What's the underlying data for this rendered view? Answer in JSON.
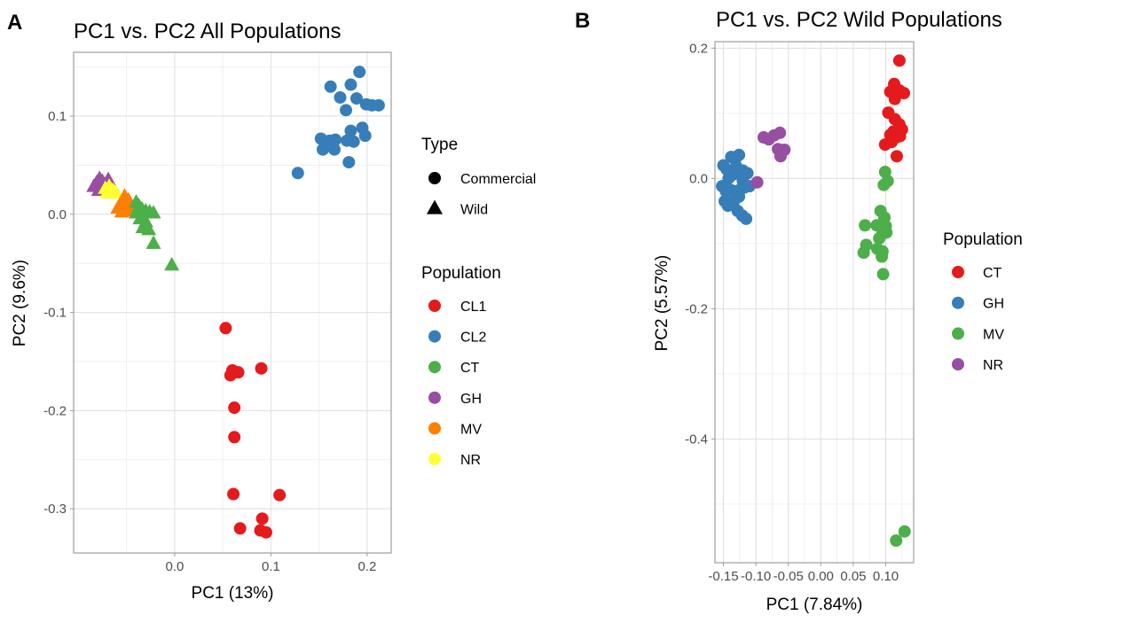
{
  "chart_data": [
    {
      "type": "scatter",
      "panel_label": "A",
      "title": "PC1 vs. PC2 All Populations",
      "xlabel": "PC1 (13%)",
      "ylabel": "PC2 (9.6%)",
      "xlim": [
        -0.105,
        0.225
      ],
      "ylim": [
        -0.345,
        0.165
      ],
      "x_ticks": [
        0.0,
        0.1,
        0.2
      ],
      "x_tick_labels": [
        "0.0",
        "0.1",
        "0.2"
      ],
      "y_ticks": [
        0.1,
        0.0,
        -0.1,
        -0.2,
        -0.3
      ],
      "y_tick_labels": [
        "0.1",
        "0.0",
        "-0.1",
        "-0.2",
        "-0.3"
      ],
      "grid": true,
      "legend_type": {
        "title": "Type",
        "entries": [
          {
            "label": "Commercial",
            "shape": "circle"
          },
          {
            "label": "Wild",
            "shape": "triangle"
          }
        ]
      },
      "legend_population": {
        "title": "Population",
        "entries": [
          {
            "label": "CL1",
            "color": "#E41A1C"
          },
          {
            "label": "CL2",
            "color": "#377EB8"
          },
          {
            "label": "CT",
            "color": "#4DAF4A"
          },
          {
            "label": "GH",
            "color": "#984EA3"
          },
          {
            "label": "MV",
            "color": "#FF7F00"
          },
          {
            "label": "NR",
            "color": "#FFFF33"
          }
        ]
      },
      "series": [
        {
          "name": "CL2",
          "shape": "circle",
          "color": "#377EB8",
          "points": [
            [
              0.192,
              0.145
            ],
            [
              0.162,
              0.13
            ],
            [
              0.183,
              0.132
            ],
            [
              0.172,
              0.119
            ],
            [
              0.189,
              0.118
            ],
            [
              0.178,
              0.106
            ],
            [
              0.199,
              0.112
            ],
            [
              0.205,
              0.111
            ],
            [
              0.212,
              0.111
            ],
            [
              0.195,
              0.088
            ],
            [
              0.198,
              0.08
            ],
            [
              0.183,
              0.085
            ],
            [
              0.152,
              0.077
            ],
            [
              0.161,
              0.075
            ],
            [
              0.167,
              0.076
            ],
            [
              0.179,
              0.075
            ],
            [
              0.186,
              0.074
            ],
            [
              0.154,
              0.066
            ],
            [
              0.166,
              0.066
            ],
            [
              0.181,
              0.053
            ],
            [
              0.128,
              0.042
            ]
          ]
        },
        {
          "name": "CL1",
          "shape": "circle",
          "color": "#E41A1C",
          "points": [
            [
              0.053,
              -0.116
            ],
            [
              0.06,
              -0.159
            ],
            [
              0.058,
              -0.164
            ],
            [
              0.066,
              -0.161
            ],
            [
              0.09,
              -0.157
            ],
            [
              0.062,
              -0.197
            ],
            [
              0.062,
              -0.227
            ],
            [
              0.061,
              -0.285
            ],
            [
              0.109,
              -0.286
            ],
            [
              0.091,
              -0.31
            ],
            [
              0.068,
              -0.32
            ],
            [
              0.089,
              -0.322
            ],
            [
              0.095,
              -0.324
            ]
          ]
        },
        {
          "name": "GH",
          "shape": "triangle",
          "color": "#984EA3",
          "points": [
            [
              -0.084,
              0.028
            ],
            [
              -0.081,
              0.032
            ],
            [
              -0.078,
              0.036
            ],
            [
              -0.075,
              0.033
            ],
            [
              -0.072,
              0.03
            ],
            [
              -0.069,
              0.035
            ],
            [
              -0.079,
              0.024
            ],
            [
              -0.073,
              0.026
            ]
          ]
        },
        {
          "name": "NR",
          "shape": "triangle",
          "color": "#FFFF33",
          "points": [
            [
              -0.072,
              0.026
            ],
            [
              -0.068,
              0.028
            ],
            [
              -0.064,
              0.024
            ],
            [
              -0.061,
              0.022
            ],
            [
              -0.066,
              0.021
            ],
            [
              -0.07,
              0.022
            ]
          ]
        },
        {
          "name": "MV",
          "shape": "triangle",
          "color": "#FF7F00",
          "points": [
            [
              -0.052,
              0.018
            ],
            [
              -0.048,
              0.014
            ],
            [
              -0.056,
              0.01
            ],
            [
              -0.05,
              0.008
            ],
            [
              -0.044,
              0.006
            ],
            [
              -0.059,
              0.006
            ],
            [
              -0.046,
              0.003
            ],
            [
              -0.055,
              0.002
            ]
          ]
        },
        {
          "name": "CT",
          "shape": "triangle",
          "color": "#4DAF4A",
          "points": [
            [
              -0.04,
              0.012
            ],
            [
              -0.037,
              0.008
            ],
            [
              -0.034,
              0.005
            ],
            [
              -0.03,
              0.003
            ],
            [
              -0.026,
              0.002
            ],
            [
              -0.022,
              0.001
            ],
            [
              -0.036,
              -0.005
            ],
            [
              -0.03,
              -0.008
            ],
            [
              -0.04,
              0.001
            ],
            [
              -0.033,
              -0.014
            ],
            [
              -0.027,
              -0.016
            ],
            [
              -0.022,
              -0.03
            ],
            [
              -0.003,
              -0.052
            ]
          ]
        }
      ]
    },
    {
      "type": "scatter",
      "panel_label": "B",
      "title": "PC1 vs. PC2 Wild Populations",
      "xlabel": "PC1 (7.84%)",
      "ylabel": "PC2 (5.57%)",
      "xlim": [
        -0.163,
        0.143
      ],
      "ylim": [
        -0.59,
        0.21
      ],
      "x_ticks": [
        -0.15,
        -0.1,
        -0.05,
        0.0,
        0.05,
        0.1
      ],
      "x_tick_labels": [
        "-0.15",
        "-0.10",
        "-0.05",
        "0.00",
        "0.05",
        "0.10"
      ],
      "y_ticks": [
        0.2,
        0.0,
        -0.2,
        -0.4
      ],
      "y_tick_labels": [
        "0.2",
        "0.0",
        "-0.2",
        "-0.4"
      ],
      "grid": true,
      "legend_population": {
        "title": "Population",
        "entries": [
          {
            "label": "CT",
            "color": "#E41A1C"
          },
          {
            "label": "GH",
            "color": "#377EB8"
          },
          {
            "label": "MV",
            "color": "#4DAF4A"
          },
          {
            "label": "NR",
            "color": "#984EA3"
          }
        ]
      },
      "series": [
        {
          "name": "CT",
          "color": "#E41A1C",
          "points": [
            [
              0.121,
              0.181
            ],
            [
              0.113,
              0.145
            ],
            [
              0.121,
              0.135
            ],
            [
              0.107,
              0.133
            ],
            [
              0.114,
              0.122
            ],
            [
              0.128,
              0.131
            ],
            [
              0.104,
              0.101
            ],
            [
              0.114,
              0.091
            ],
            [
              0.121,
              0.083
            ],
            [
              0.125,
              0.075
            ],
            [
              0.112,
              0.072
            ],
            [
              0.107,
              0.067
            ],
            [
              0.116,
              0.063
            ],
            [
              0.122,
              0.065
            ],
            [
              0.099,
              0.052
            ],
            [
              0.109,
              0.056
            ],
            [
              0.117,
              0.034
            ]
          ]
        },
        {
          "name": "GH",
          "color": "#377EB8",
          "points": [
            [
              -0.15,
              0.02
            ],
            [
              -0.145,
              0.014
            ],
            [
              -0.138,
              0.033
            ],
            [
              -0.132,
              0.029
            ],
            [
              -0.126,
              0.036
            ],
            [
              -0.142,
              0.0
            ],
            [
              -0.135,
              0.006
            ],
            [
              -0.128,
              0.01
            ],
            [
              -0.12,
              0.012
            ],
            [
              -0.113,
              0.008
            ],
            [
              -0.152,
              -0.012
            ],
            [
              -0.146,
              -0.02
            ],
            [
              -0.138,
              -0.018
            ],
            [
              -0.13,
              -0.02
            ],
            [
              -0.124,
              -0.017
            ],
            [
              -0.118,
              -0.014
            ],
            [
              -0.11,
              -0.012
            ],
            [
              -0.143,
              -0.042
            ],
            [
              -0.134,
              -0.035
            ],
            [
              -0.128,
              -0.05
            ],
            [
              -0.121,
              -0.057
            ],
            [
              -0.115,
              -0.062
            ],
            [
              -0.148,
              -0.035
            ],
            [
              -0.126,
              -0.028
            ],
            [
              -0.13,
              0.018
            ],
            [
              -0.12,
              -0.004
            ]
          ]
        },
        {
          "name": "NR",
          "color": "#984EA3",
          "points": [
            [
              -0.088,
              0.063
            ],
            [
              -0.08,
              0.06
            ],
            [
              -0.072,
              0.066
            ],
            [
              -0.063,
              0.07
            ],
            [
              -0.066,
              0.045
            ],
            [
              -0.056,
              0.044
            ],
            [
              -0.062,
              0.034
            ],
            [
              -0.098,
              -0.006
            ]
          ]
        },
        {
          "name": "MV",
          "color": "#4DAF4A",
          "points": [
            [
              0.099,
              0.01
            ],
            [
              0.103,
              -0.004
            ],
            [
              0.097,
              -0.01
            ],
            [
              0.092,
              -0.05
            ],
            [
              0.098,
              -0.06
            ],
            [
              0.086,
              -0.072
            ],
            [
              0.093,
              -0.074
            ],
            [
              0.1,
              -0.073
            ],
            [
              0.068,
              -0.072
            ],
            [
              0.101,
              -0.083
            ],
            [
              0.095,
              -0.085
            ],
            [
              0.09,
              -0.092
            ],
            [
              0.07,
              -0.102
            ],
            [
              0.087,
              -0.108
            ],
            [
              0.095,
              -0.112
            ],
            [
              0.066,
              -0.114
            ],
            [
              0.094,
              -0.12
            ],
            [
              0.096,
              -0.147
            ],
            [
              0.116,
              -0.556
            ],
            [
              0.129,
              -0.542
            ]
          ]
        }
      ]
    }
  ]
}
